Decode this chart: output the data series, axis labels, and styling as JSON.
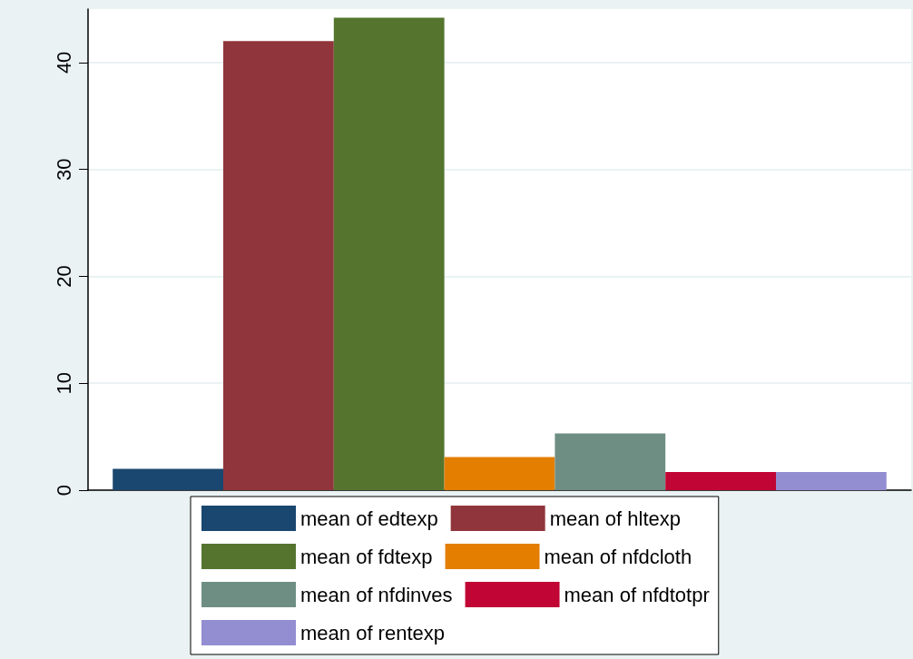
{
  "chart_data": {
    "type": "bar",
    "categories": [
      null
    ],
    "series": [
      {
        "name": "mean of edtexp",
        "color": "#1a476f",
        "values": [
          2.0
        ]
      },
      {
        "name": "mean of hltexp",
        "color": "#90353b",
        "values": [
          42.0
        ]
      },
      {
        "name": "mean of fdtexp",
        "color": "#55752f",
        "values": [
          44.2
        ]
      },
      {
        "name": "mean of nfdcloth",
        "color": "#e37e00",
        "values": [
          3.1
        ]
      },
      {
        "name": "mean of nfdinves",
        "color": "#6e8e84",
        "values": [
          5.3
        ]
      },
      {
        "name": "mean of nfdtotpr",
        "color": "#c10534",
        "values": [
          1.7
        ]
      },
      {
        "name": "mean of rentexp",
        "color": "#938dd2",
        "values": [
          1.7
        ]
      }
    ],
    "ylim": [
      0,
      45
    ],
    "yticks": [
      0,
      10,
      20,
      30,
      40
    ],
    "grid": "y",
    "legend": "bottom",
    "tick_labels": "y"
  }
}
